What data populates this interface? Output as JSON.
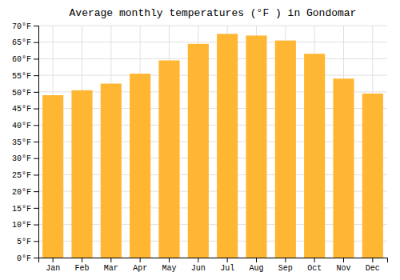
{
  "chart_data": {
    "type": "bar",
    "title": "Average monthly temperatures (°F ) in Gondomar",
    "categories": [
      "Jan",
      "Feb",
      "Mar",
      "Apr",
      "May",
      "Jun",
      "Jul",
      "Aug",
      "Sep",
      "Oct",
      "Nov",
      "Dec"
    ],
    "values": [
      49,
      50.5,
      52.5,
      55.5,
      59.5,
      64.5,
      67.5,
      67,
      65.5,
      61.5,
      54,
      49.5
    ],
    "color": "#FFB733",
    "ylim": [
      0,
      70
    ],
    "yticks": [
      {
        "value": 0,
        "label": "0°F"
      },
      {
        "value": 5,
        "label": "5°F"
      },
      {
        "value": 10,
        "label": "10°F"
      },
      {
        "value": 15,
        "label": "15°F"
      },
      {
        "value": 20,
        "label": "20°F"
      },
      {
        "value": 25,
        "label": "25°F"
      },
      {
        "value": 30,
        "label": "30°F"
      },
      {
        "value": 35,
        "label": "35°F"
      },
      {
        "value": 40,
        "label": "40°F"
      },
      {
        "value": 45,
        "label": "45°F"
      },
      {
        "value": 50,
        "label": "50°F"
      },
      {
        "value": 55,
        "label": "55°F"
      },
      {
        "value": 60,
        "label": "60°F"
      },
      {
        "value": 65,
        "label": "65°F"
      },
      {
        "value": 70,
        "label": "70°F"
      }
    ],
    "grid": true
  }
}
